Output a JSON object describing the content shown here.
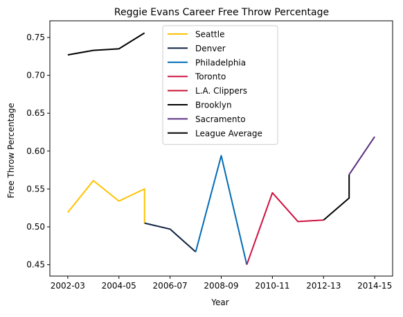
{
  "chart_data": {
    "type": "line",
    "title": "Reggie Evans Career Free Throw Percentage",
    "xlabel": "Year",
    "ylabel": "Free Throw Percentage",
    "x_tick_labels": [
      "2002-03",
      "2004-05",
      "2006-07",
      "2008-09",
      "2010-11",
      "2012-13",
      "2014-15"
    ],
    "x_tick_positions": [
      0,
      2,
      4,
      6,
      8,
      10,
      12
    ],
    "xlim": [
      -0.7,
      12.7
    ],
    "ylim": [
      0.435,
      0.772
    ],
    "y_ticks": [
      0.45,
      0.5,
      0.55,
      0.6,
      0.65,
      0.7,
      0.75
    ],
    "y_tick_labels": [
      "0.45",
      "0.50",
      "0.55",
      "0.60",
      "0.65",
      "0.70",
      "0.75"
    ],
    "grid": false,
    "legend_placement": "top-center",
    "series": [
      {
        "name": "Seattle",
        "color": "#FFC200",
        "x": [
          0,
          1,
          2,
          3,
          3
        ],
        "y": [
          0.519,
          0.561,
          0.534,
          0.55,
          0.505
        ]
      },
      {
        "name": "Denver",
        "color": "#0E2240",
        "x": [
          3,
          4,
          5
        ],
        "y": [
          0.505,
          0.497,
          0.467
        ]
      },
      {
        "name": "Philadelphia",
        "color": "#006BB6",
        "x": [
          5,
          6,
          7
        ],
        "y": [
          0.467,
          0.594,
          0.45
        ]
      },
      {
        "name": "Toronto",
        "color": "#CE1141",
        "x": [
          7,
          8,
          9,
          10
        ],
        "y": [
          0.45,
          0.545,
          0.507,
          0.509
        ]
      },
      {
        "name": "L.A. Clippers",
        "color": "#C8102E",
        "x": [
          7,
          7
        ],
        "y": [
          0.45,
          0.45
        ]
      },
      {
        "name": "Brooklyn",
        "color": "#000000",
        "x": [
          10,
          11,
          11
        ],
        "y": [
          0.509,
          0.538,
          0.569
        ]
      },
      {
        "name": "Sacramento",
        "color": "#5A2D81",
        "x": [
          11,
          12
        ],
        "y": [
          0.569,
          0.619
        ]
      },
      {
        "name": "League Average",
        "color": "#000000",
        "x": [
          0,
          1,
          2,
          3
        ],
        "y": [
          0.727,
          0.733,
          0.735,
          0.756
        ]
      }
    ]
  }
}
